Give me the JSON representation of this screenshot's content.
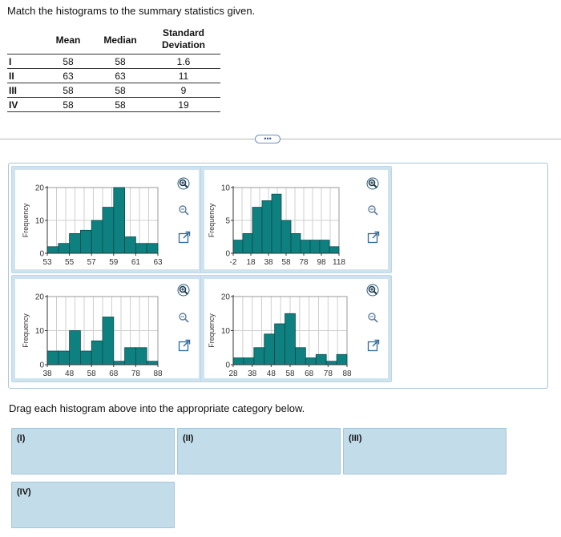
{
  "instruction": "Match the histograms to the summary statistics given.",
  "table": {
    "headers": [
      "",
      "Mean",
      "Median",
      "Standard Deviation"
    ],
    "rows": [
      {
        "label": "I",
        "mean": "58",
        "median": "58",
        "sd": "1.6"
      },
      {
        "label": "II",
        "mean": "63",
        "median": "63",
        "sd": "11"
      },
      {
        "label": "III",
        "mean": "58",
        "median": "58",
        "sd": "9"
      },
      {
        "label": "IV",
        "mean": "58",
        "median": "58",
        "sd": "19"
      }
    ]
  },
  "expand_label": "•••",
  "drag_instruction": "Drag each histogram above into the appropriate category below.",
  "targets": [
    "(I)",
    "(II)",
    "(III)",
    "(IV)"
  ],
  "colors": {
    "bar": "#0f8080",
    "bar_stroke": "#0b4b4b",
    "card_border": "#cfe3ef",
    "target_bg": "#c2dcea"
  },
  "icons": [
    "zoom-in-icon",
    "zoom-out-icon",
    "open-in-new-window-icon"
  ],
  "chart_data": [
    {
      "type": "bar",
      "ylabel": "Frequency",
      "yticks": [
        0,
        10,
        20
      ],
      "ylim": [
        0,
        20
      ],
      "xticks": [
        "53",
        "55",
        "57",
        "59",
        "61",
        "63"
      ],
      "xlim": [
        53,
        63
      ],
      "bin_width": 0.67,
      "values": [
        2,
        3,
        6,
        7,
        10,
        14,
        20,
        5,
        3,
        3
      ],
      "grid": true
    },
    {
      "type": "bar",
      "ylabel": "Frequency",
      "yticks": [
        0,
        5,
        10
      ],
      "ylim": [
        0,
        10
      ],
      "xticks": [
        "-2",
        "18",
        "38",
        "58",
        "78",
        "98",
        "118"
      ],
      "xlim": [
        -2,
        118
      ],
      "bin_width": 8,
      "values": [
        2,
        3,
        7,
        8,
        9,
        5,
        3,
        2,
        2,
        2,
        1
      ],
      "grid": true
    },
    {
      "type": "bar",
      "ylabel": "Frequency",
      "yticks": [
        0,
        10,
        20
      ],
      "ylim": [
        0,
        20
      ],
      "xticks": [
        "38",
        "48",
        "58",
        "68",
        "78",
        "88"
      ],
      "xlim": [
        38,
        88
      ],
      "bin_width": 3.3,
      "values": [
        4,
        4,
        10,
        4,
        7,
        14,
        1,
        5,
        5,
        1
      ],
      "grid": true
    },
    {
      "type": "bar",
      "ylabel": "Frequency",
      "yticks": [
        0,
        10,
        20
      ],
      "ylim": [
        0,
        20
      ],
      "xticks": [
        "28",
        "38",
        "48",
        "58",
        "68",
        "78",
        "88"
      ],
      "xlim": [
        28,
        88
      ],
      "bin_width": 3.3,
      "values": [
        2,
        2,
        5,
        9,
        12,
        15,
        5,
        2,
        3,
        1,
        3
      ],
      "grid": true
    }
  ]
}
